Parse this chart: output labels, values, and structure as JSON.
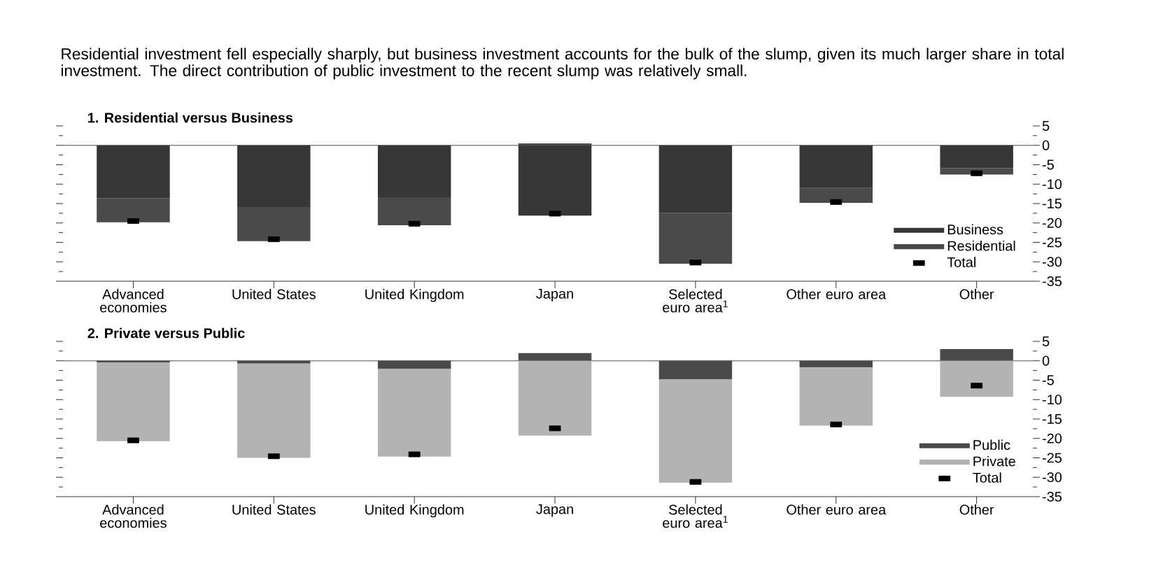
{
  "chart_data": [
    {
      "type": "other",
      "title": "Residential investment fell especially sharply, but business investment accounts for the bulk of the slump, given its much larger share in total investment. The direct contribution of public investment to the recent slump was relatively small."
    },
    {
      "type": "bar",
      "stacked": true,
      "title": "1. Residential versus Business",
      "categories": [
        "Advanced economies",
        "United States",
        "United Kingdom",
        "Japan",
        "Selected euro area$^{1}$",
        "Other euro area",
        "Other"
      ],
      "series": [
        {
          "name": "Business",
          "color": "#363636",
          "values": [
            -13.6,
            -15.9,
            -13.4,
            -18.1,
            -17.4,
            -11.0,
            -5.9
          ]
        },
        {
          "name": "Residential",
          "color": "#4a4a4a",
          "values": [
            -6.2,
            -8.8,
            -7.2,
            0.5,
            -13.1,
            -3.8,
            -1.6
          ]
        },
        {
          "name": "Total",
          "type": "scatter",
          "marker": "square",
          "color": "#000000",
          "values": [
            -19.5,
            -24.2,
            -20.2,
            -17.6,
            -30.2,
            -14.6,
            -7.2
          ]
        }
      ],
      "ylim": [
        -35,
        5
      ],
      "yticks": [
        5,
        0,
        -5,
        -10,
        -15,
        -20,
        -25,
        -30,
        -35
      ],
      "ref_lines": [
        {
          "axis": "y",
          "value": 0,
          "color": "#888888"
        }
      ],
      "legend": "bottom right"
    },
    {
      "type": "bar",
      "stacked": true,
      "title": "2. Private versus Public",
      "categories": [
        "Advanced economies",
        "United States",
        "United Kingdom",
        "Japan",
        "Selected euro area$^{1}$",
        "Other euro area",
        "Other"
      ],
      "series": [
        {
          "name": "Public",
          "color": "#4a4a4a",
          "values": [
            -0.4,
            -0.7,
            -2.1,
            2.0,
            -4.8,
            -1.7,
            3.0
          ]
        },
        {
          "name": "Private",
          "color": "#b3b3b3",
          "values": [
            -20.3,
            -24.3,
            -22.6,
            -19.3,
            -26.6,
            -15.0,
            -9.3
          ]
        },
        {
          "name": "Total",
          "type": "scatter",
          "marker": "square",
          "color": "#000000",
          "values": [
            -20.5,
            -24.6,
            -24.1,
            -17.4,
            -31.2,
            -16.4,
            -6.4
          ]
        }
      ],
      "ylim": [
        -35,
        5
      ],
      "yticks": [
        5,
        0,
        -5,
        -10,
        -15,
        -20,
        -25,
        -30,
        -35
      ],
      "ref_lines": [
        {
          "axis": "y",
          "value": 0,
          "color": "#888888"
        }
      ],
      "legend": "bottom right"
    }
  ]
}
